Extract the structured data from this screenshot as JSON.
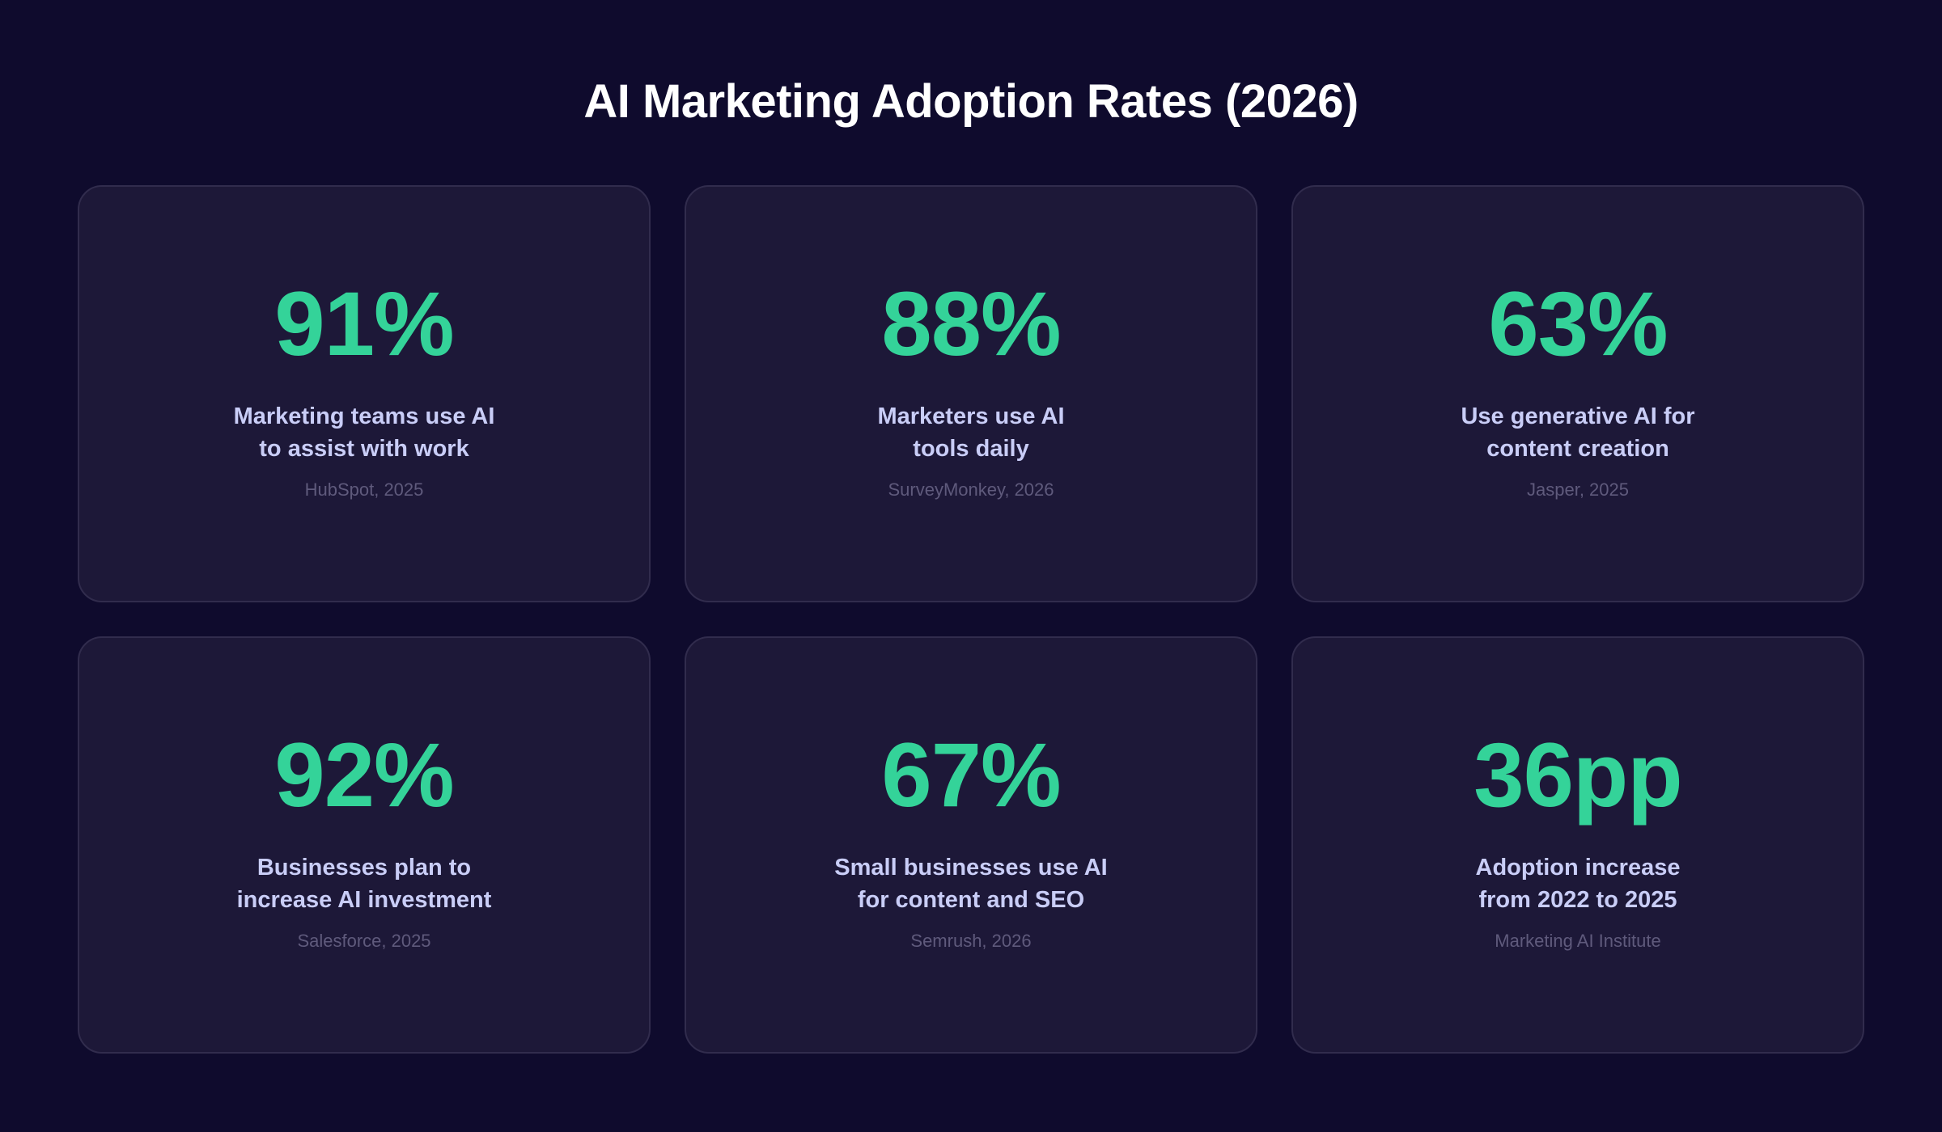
{
  "title": "AI Marketing Adoption Rates (2026)",
  "accent_color": "#34d399",
  "cards": [
    {
      "value": "91%",
      "description": "Marketing teams use AI to assist with work",
      "source": "HubSpot, 2025"
    },
    {
      "value": "88%",
      "description": "Marketers use AI tools daily",
      "source": "SurveyMonkey, 2026"
    },
    {
      "value": "63%",
      "description": "Use generative AI for content creation",
      "source": "Jasper, 2025"
    },
    {
      "value": "92%",
      "description": "Businesses plan to increase AI investment",
      "source": "Salesforce, 2025"
    },
    {
      "value": "67%",
      "description": "Small businesses use AI for content and SEO",
      "source": "Semrush, 2026"
    },
    {
      "value": "36pp",
      "description": "Adoption increase from 2022 to 2025",
      "source": "Marketing AI Institute"
    }
  ]
}
